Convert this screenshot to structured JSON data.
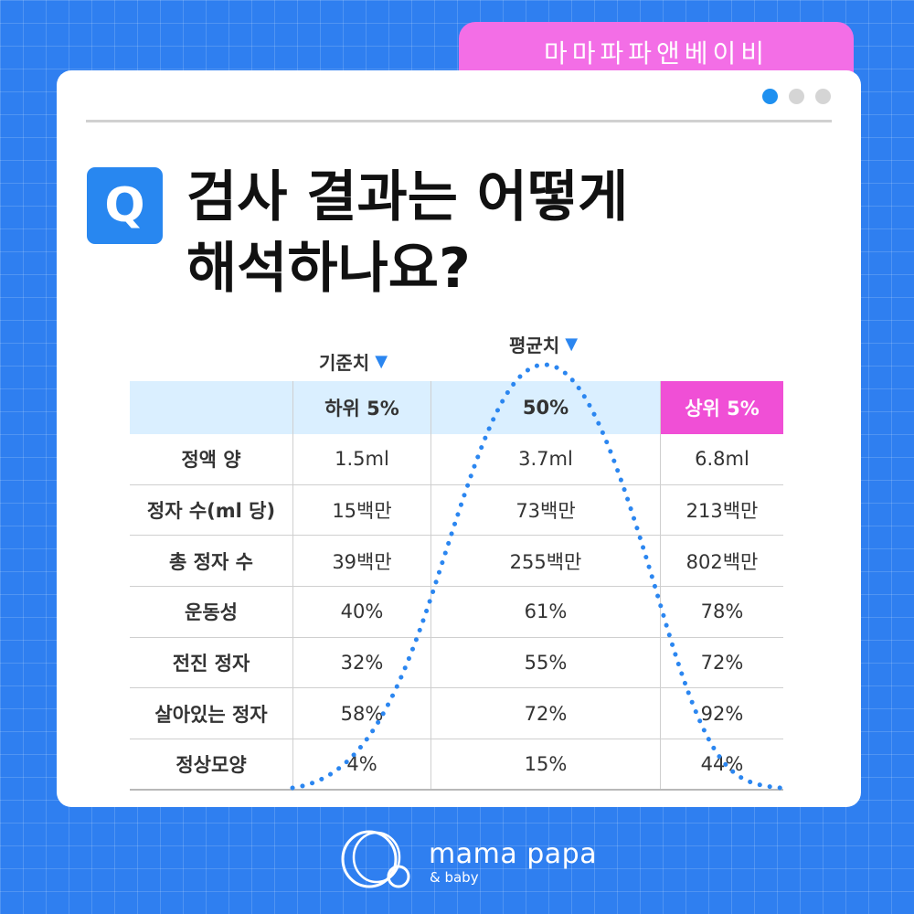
{
  "brand_tab": "마마파파앤베이비",
  "title": {
    "badge": "Q",
    "line1": "검사 결과는 어떻게",
    "line2": "해석하나요?"
  },
  "labels": {
    "reference": "기준치",
    "average": "평균치"
  },
  "table": {
    "headers": [
      "",
      "하위 5%",
      "50%",
      "상위 5%"
    ],
    "rows": [
      [
        "정액 양",
        "1.5ml",
        "3.7ml",
        "6.8ml"
      ],
      [
        "정자 수(ml 당)",
        "15백만",
        "73백만",
        "213백만"
      ],
      [
        "총 정자 수",
        "39백만",
        "255백만",
        "802백만"
      ],
      [
        "운동성",
        "40%",
        "61%",
        "78%"
      ],
      [
        "전진 정자",
        "32%",
        "55%",
        "72%"
      ],
      [
        "살아있는 정자",
        "58%",
        "72%",
        "92%"
      ],
      [
        "정상모양",
        "4%",
        "15%",
        "44%"
      ]
    ]
  },
  "logo": {
    "main": "mama papa",
    "sub": "& baby"
  },
  "colors": {
    "background": "#2f7ff0",
    "accent_pink": "#f36ee6",
    "accent_blue": "#2887f0",
    "header_bg": "#daefff"
  },
  "icons": [
    "down-triangle-icon",
    "logo-icon"
  ]
}
